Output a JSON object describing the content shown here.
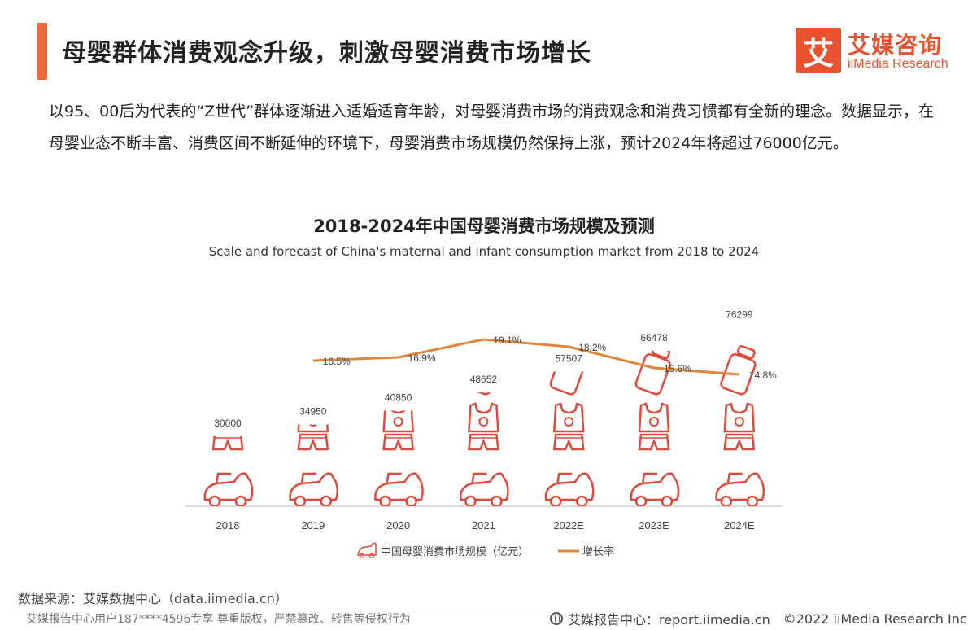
{
  "header": {
    "title": "母婴群体消费观念升级，刺激母婴消费市场增长",
    "logo_glyph": "艾",
    "logo_cn": "艾媒咨询",
    "logo_en": "iiMedia Research"
  },
  "intro_text": "以95、00后为代表的“Z世代”群体逐渐进入适婚适育年龄，对母婴消费市场的消费观念和消费习惯都有全新的理念。数据显示，在母婴业态不断丰富、消费区间不断延伸的环境下，母婴消费市场规模仍然保持上涨，预计2024年将超过76000亿元。",
  "chart_data": {
    "type": "bar",
    "title": "2018-2024年中国母婴消费市场规模及预测",
    "subtitle": "Scale and forecast of China's maternal and infant consumption market from 2018 to 2024",
    "categories": [
      "2018",
      "2019",
      "2020",
      "2021",
      "2022E",
      "2023E",
      "2024E"
    ],
    "series": [
      {
        "name": "中国母婴消费市场规模（亿元）",
        "type": "bar",
        "values": [
          30000,
          34950,
          40850,
          48652,
          57507,
          66478,
          76299
        ],
        "value_labels": [
          "30000",
          "34950",
          "40850",
          "48652",
          "57507",
          "66478",
          "76299"
        ],
        "color": "#e04a3a"
      },
      {
        "name": "增长率",
        "type": "line",
        "x": [
          "2019",
          "2020",
          "2021",
          "2022E",
          "2023E",
          "2024E"
        ],
        "values": [
          16.5,
          16.9,
          19.1,
          18.2,
          15.6,
          14.8
        ],
        "value_labels": [
          "16.5%",
          "16.9%",
          "19.1%",
          "18.2%",
          "15.6%",
          "14.8%"
        ],
        "color": "#e0873a"
      }
    ],
    "legend_position": "bottom-center",
    "grid": false
  },
  "footer": {
    "source": "数据来源：艾媒数据中心（data.iimedia.cn）",
    "copyright_note": "艾媒报告中心用户187****4596专享 尊重版权，严禁篡改、转售等侵权行为",
    "report_site": "艾媒报告中心：report.iimedia.cn",
    "copyright": "©2022  iiMedia Research  Inc"
  }
}
